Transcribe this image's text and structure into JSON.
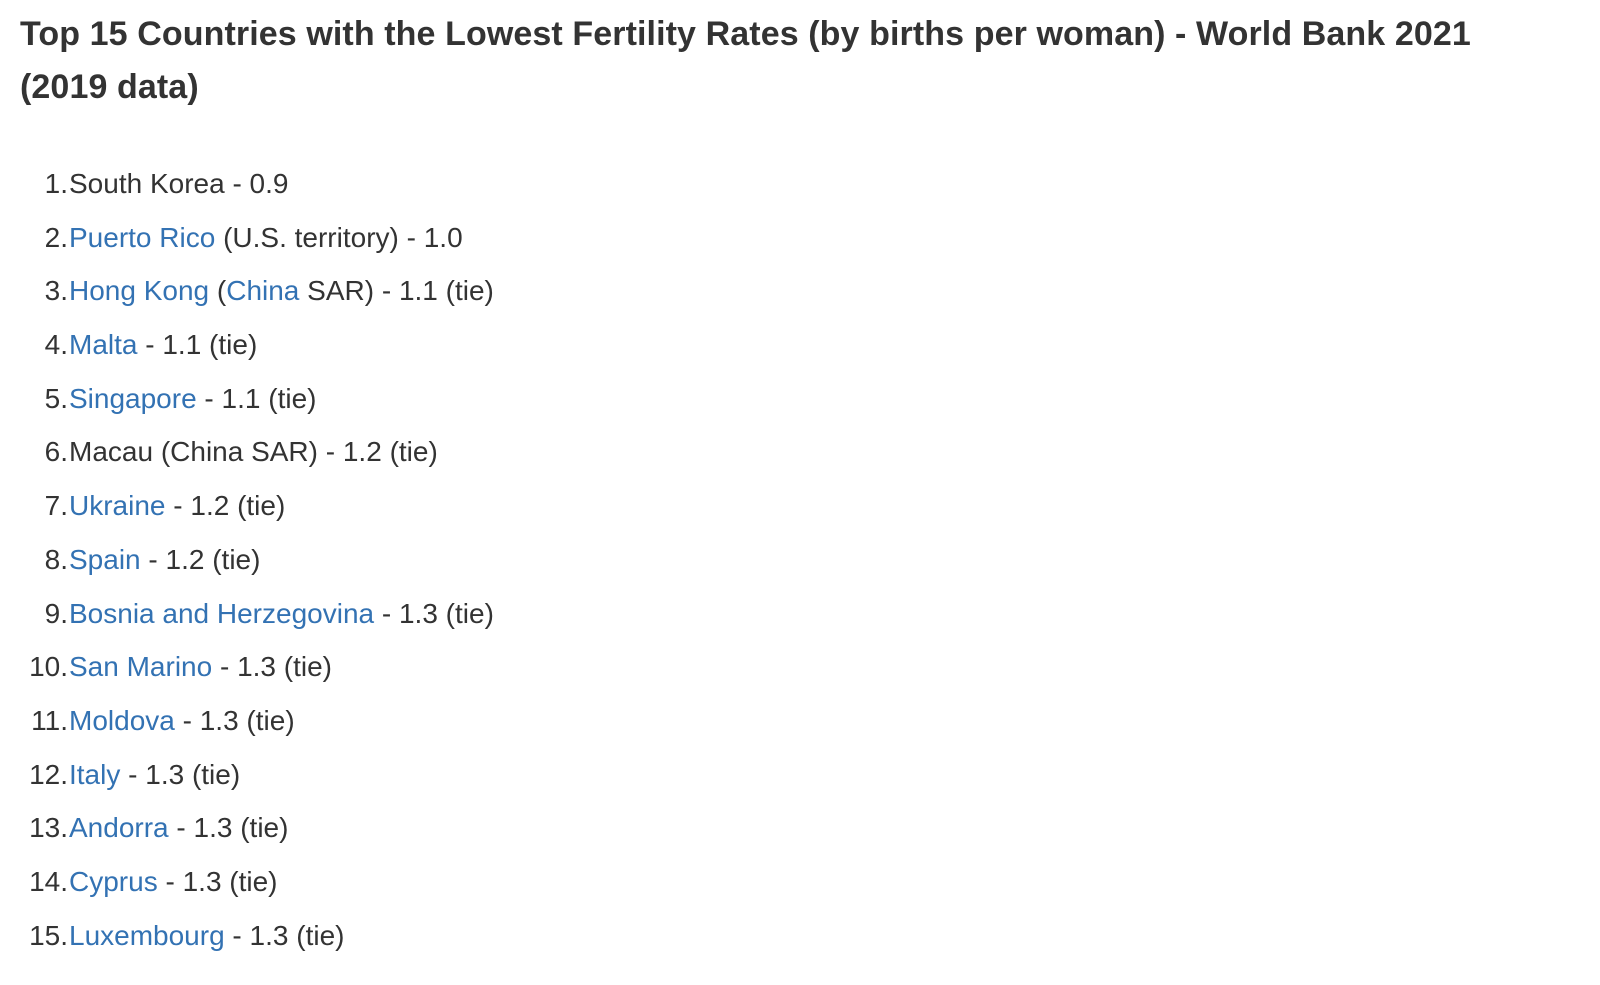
{
  "title": "Top 15 Countries with the Lowest Fertility Rates (by births per woman) - World Bank 2021 (2019 data)",
  "link_color": "#3372b3",
  "text_color": "#333333",
  "items": [
    {
      "num": "1.",
      "segments": [
        {
          "text": "South Korea - 0.9",
          "link": false
        }
      ]
    },
    {
      "num": "2.",
      "segments": [
        {
          "text": "Puerto Rico",
          "link": true
        },
        {
          "text": " (U.S. territory) - 1.0",
          "link": false
        }
      ]
    },
    {
      "num": "3.",
      "segments": [
        {
          "text": "Hong Kong",
          "link": true
        },
        {
          "text": " (",
          "link": false
        },
        {
          "text": "China",
          "link": true
        },
        {
          "text": " SAR) - 1.1 (tie)",
          "link": false
        }
      ]
    },
    {
      "num": "4.",
      "segments": [
        {
          "text": "Malta",
          "link": true
        },
        {
          "text": " - 1.1 (tie)",
          "link": false
        }
      ]
    },
    {
      "num": "5.",
      "segments": [
        {
          "text": "Singapore",
          "link": true
        },
        {
          "text": " - 1.1 (tie)",
          "link": false
        }
      ]
    },
    {
      "num": "6.",
      "segments": [
        {
          "text": "Macau (China SAR) - 1.2 (tie)",
          "link": false
        }
      ]
    },
    {
      "num": "7.",
      "segments": [
        {
          "text": "Ukraine",
          "link": true
        },
        {
          "text": " - 1.2 (tie)",
          "link": false
        }
      ]
    },
    {
      "num": "8.",
      "segments": [
        {
          "text": "Spain",
          "link": true
        },
        {
          "text": " - 1.2 (tie)",
          "link": false
        }
      ]
    },
    {
      "num": "9.",
      "segments": [
        {
          "text": "Bosnia and Herzegovina",
          "link": true
        },
        {
          "text": " - 1.3 (tie)",
          "link": false
        }
      ]
    },
    {
      "num": "10.",
      "segments": [
        {
          "text": "San Marino",
          "link": true
        },
        {
          "text": " - 1.3 (tie)",
          "link": false
        }
      ]
    },
    {
      "num": "11.",
      "segments": [
        {
          "text": "Moldova",
          "link": true
        },
        {
          "text": " - 1.3 (tie)",
          "link": false
        }
      ]
    },
    {
      "num": "12.",
      "segments": [
        {
          "text": "Italy",
          "link": true
        },
        {
          "text": " - 1.3 (tie)",
          "link": false
        }
      ]
    },
    {
      "num": "13.",
      "segments": [
        {
          "text": "Andorra",
          "link": true
        },
        {
          "text": " - 1.3 (tie)",
          "link": false
        }
      ]
    },
    {
      "num": "14.",
      "segments": [
        {
          "text": "Cyprus",
          "link": true
        },
        {
          "text": " - 1.3 (tie)",
          "link": false
        }
      ]
    },
    {
      "num": "15.",
      "segments": [
        {
          "text": "Luxembourg",
          "link": true
        },
        {
          "text": " - 1.3 (tie)",
          "link": false
        }
      ]
    }
  ]
}
